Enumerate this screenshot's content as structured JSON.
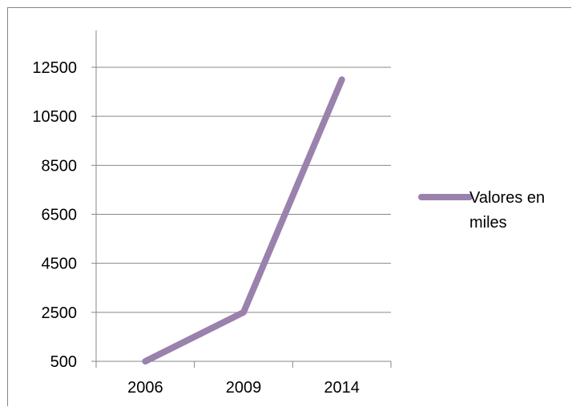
{
  "chart_data": {
    "type": "line",
    "categories": [
      "2006",
      "2009",
      "2014"
    ],
    "series": [
      {
        "name": "Valores en miles",
        "values": [
          500,
          2500,
          12000
        ],
        "color": "#9a82ad"
      }
    ],
    "y_ticks": [
      "500",
      "2500",
      "4500",
      "6500",
      "8500",
      "10500",
      "12500"
    ],
    "ylim": [
      500,
      12500
    ],
    "grid": true,
    "legend": {
      "position": "right",
      "lines": [
        "Valores en",
        "miles"
      ]
    }
  }
}
